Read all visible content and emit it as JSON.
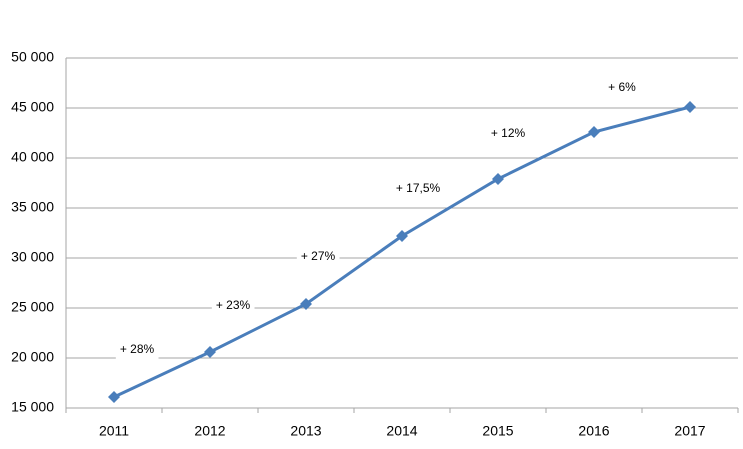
{
  "chart_data": {
    "type": "line",
    "categories": [
      "2011",
      "2012",
      "2013",
      "2014",
      "2015",
      "2016",
      "2017"
    ],
    "series": [
      {
        "color": "#4a7ebb",
        "values": [
          16100,
          20600,
          25400,
          32200,
          37900,
          42600,
          45100
        ]
      }
    ],
    "ylim": [
      15000,
      50000
    ],
    "yticks": [
      {
        "value": 15000,
        "label": "15 000"
      },
      {
        "value": 20000,
        "label": "20 000"
      },
      {
        "value": 25000,
        "label": "25 000"
      },
      {
        "value": 30000,
        "label": "30 000"
      },
      {
        "value": 35000,
        "label": "35 000"
      },
      {
        "value": 40000,
        "label": "40 000"
      },
      {
        "value": 45000,
        "label": "45 000"
      },
      {
        "value": 50000,
        "label": "50 000"
      }
    ],
    "grid": true,
    "annotations": [
      "+ 28%",
      "+ 23%",
      "+ 27%",
      "+ 17,5%",
      "+ 12%",
      "+ 6%"
    ]
  }
}
